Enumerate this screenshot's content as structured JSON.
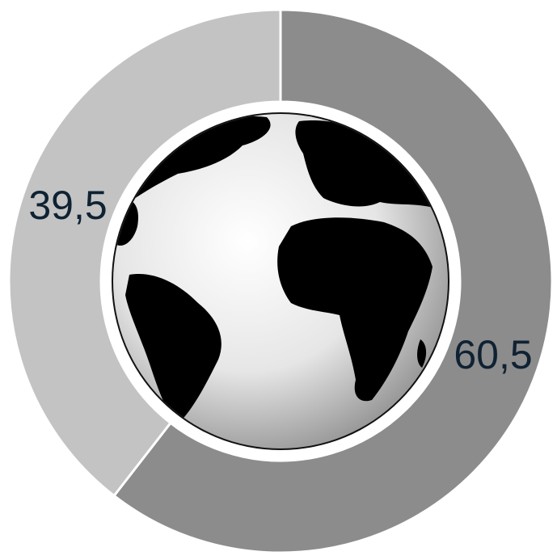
{
  "chart_data": {
    "type": "pie",
    "variant": "donut",
    "categories": [
      "",
      ""
    ],
    "values": [
      60.5,
      39.5
    ],
    "labels": [
      "60,5",
      "39,5"
    ],
    "colors": [
      "#8c8c8c",
      "#c3c3c3"
    ],
    "label_color": "#0f2233",
    "title": "",
    "legend": "none",
    "center_image": "globe-icon"
  }
}
